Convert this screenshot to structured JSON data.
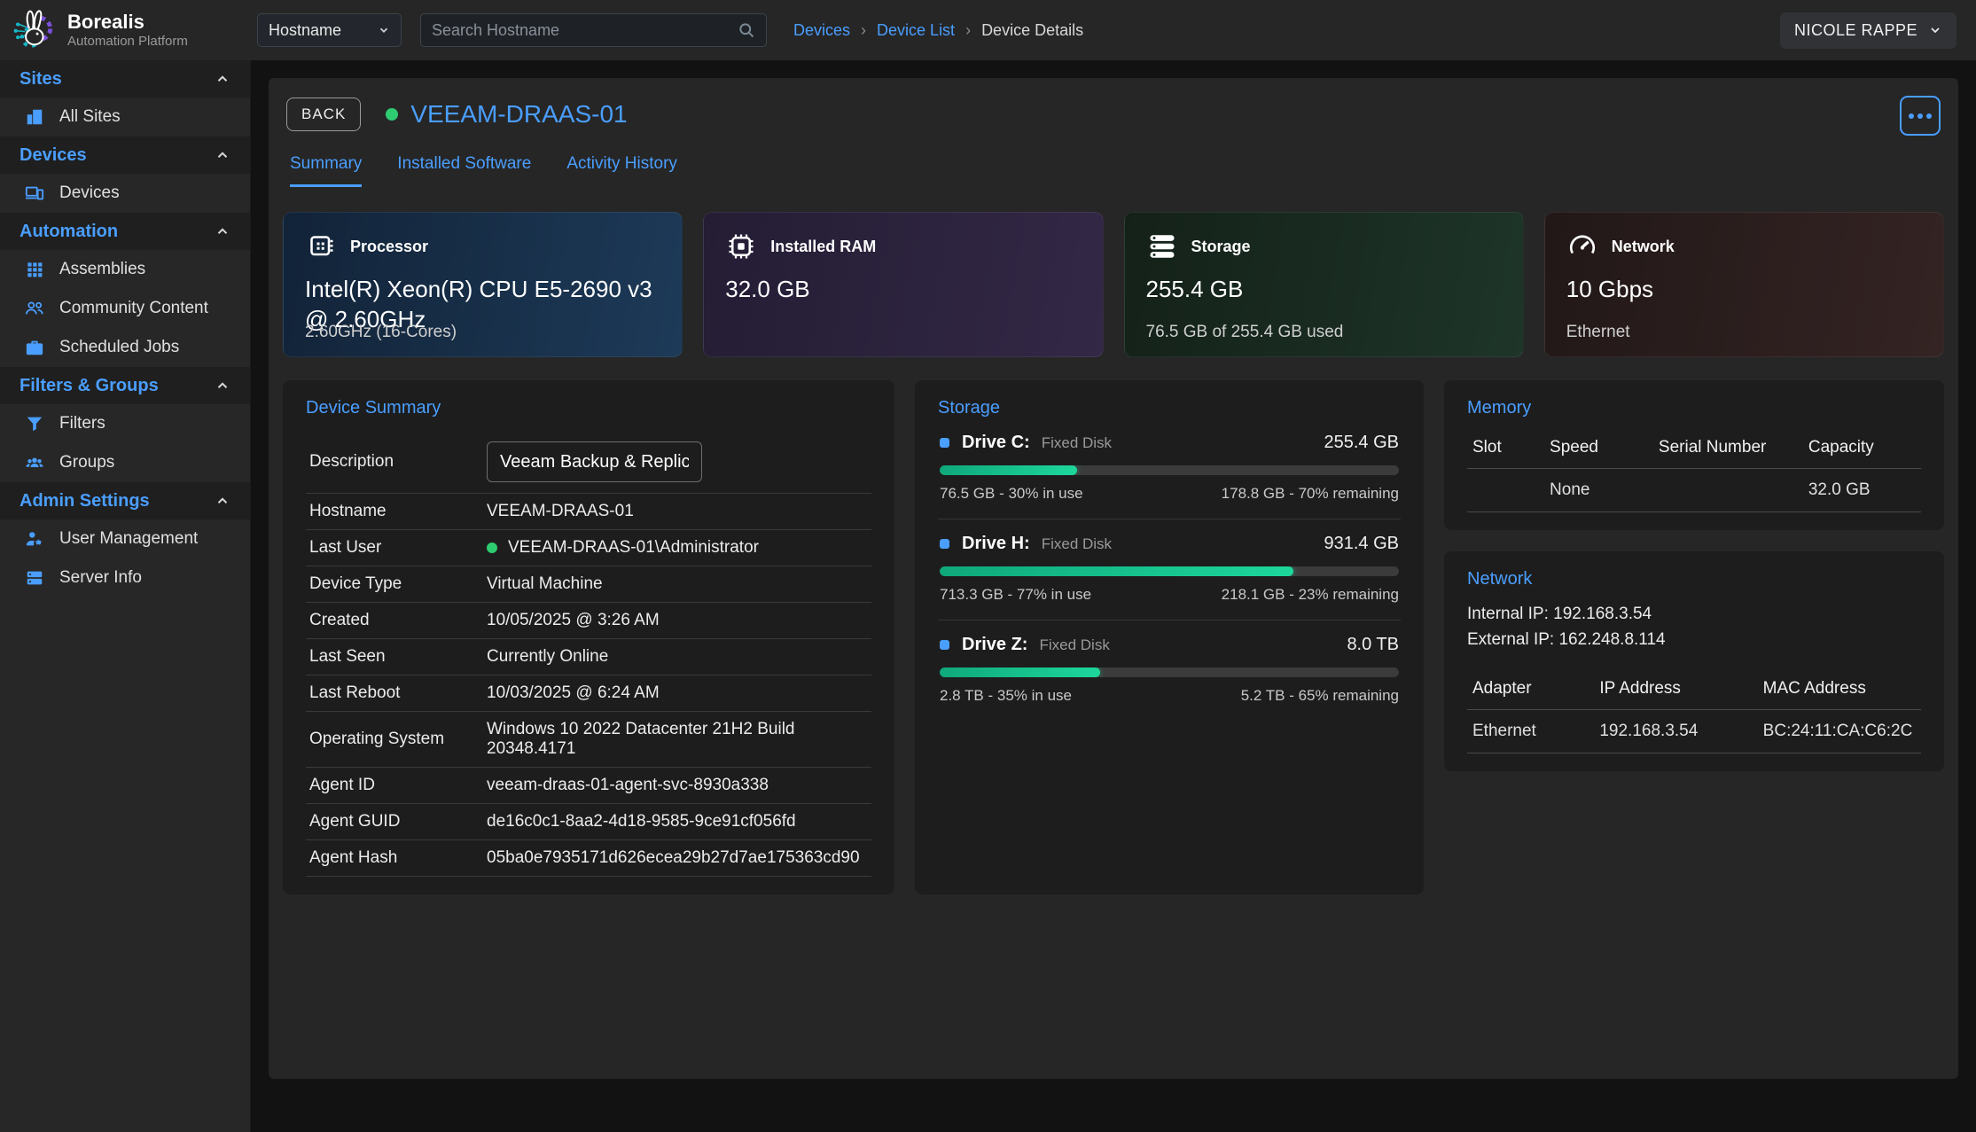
{
  "colors": {
    "accent": "#4a9eff",
    "online_green": "#2ecc71",
    "progress_green": "#1dd79b"
  },
  "brand": {
    "name": "Borealis",
    "subtitle": "Automation Platform"
  },
  "topbar": {
    "filter_dropdown": "Hostname",
    "search_placeholder": "Search Hostname",
    "breadcrumb_separator": "›",
    "breadcrumbs": [
      {
        "label": "Devices"
      },
      {
        "label": "Device List"
      },
      {
        "label": "Device Details"
      }
    ],
    "user": "NICOLE RAPPE"
  },
  "sidebar": {
    "sections": [
      {
        "title": "Sites",
        "items": [
          {
            "label": "All Sites",
            "icon": "building-icon"
          }
        ]
      },
      {
        "title": "Devices",
        "items": [
          {
            "label": "Devices",
            "icon": "devices-icon"
          }
        ]
      },
      {
        "title": "Automation",
        "items": [
          {
            "label": "Assemblies",
            "icon": "grid-icon"
          },
          {
            "label": "Community Content",
            "icon": "people-icon"
          },
          {
            "label": "Scheduled Jobs",
            "icon": "briefcase-icon"
          }
        ]
      },
      {
        "title": "Filters & Groups",
        "items": [
          {
            "label": "Filters",
            "icon": "funnel-icon"
          },
          {
            "label": "Groups",
            "icon": "groups-icon"
          }
        ]
      },
      {
        "title": "Admin Settings",
        "items": [
          {
            "label": "User Management",
            "icon": "user-gear-icon"
          },
          {
            "label": "Server Info",
            "icon": "server-icon"
          }
        ]
      }
    ]
  },
  "header": {
    "back_label": "BACK",
    "device_name": "VEEAM-DRAAS-01",
    "tabs": [
      {
        "label": "Summary",
        "active": true
      },
      {
        "label": "Installed Software",
        "active": false
      },
      {
        "label": "Activity History",
        "active": false
      }
    ]
  },
  "stat_cards": [
    {
      "icon": "cpu-icon",
      "label": "Processor",
      "value": "Intel(R) Xeon(R) CPU E5-2690 v3 @ 2.60GHz",
      "sub": "2.60GHz (16-Cores)"
    },
    {
      "icon": "ram-icon",
      "label": "Installed RAM",
      "value": "32.0 GB",
      "sub": ""
    },
    {
      "icon": "disks-icon",
      "label": "Storage",
      "value": "255.4 GB",
      "sub": "76.5 GB of 255.4 GB used"
    },
    {
      "icon": "gauge-icon",
      "label": "Network",
      "value": "10 Gbps",
      "sub": "Ethernet"
    }
  ],
  "device_summary": {
    "title": "Device Summary",
    "description_label": "Description",
    "description_value": "Veeam Backup & Replication",
    "rows": [
      {
        "label": "Hostname",
        "value": "VEEAM-DRAAS-01"
      },
      {
        "label": "Last User",
        "value": "VEEAM-DRAAS-01\\Administrator",
        "online": true
      },
      {
        "label": "Device Type",
        "value": "Virtual Machine"
      },
      {
        "label": "Created",
        "value": "10/05/2025 @ 3:26 AM"
      },
      {
        "label": "Last Seen",
        "value": "Currently Online"
      },
      {
        "label": "Last Reboot",
        "value": "10/03/2025 @ 6:24 AM"
      },
      {
        "label": "Operating System",
        "value": "Windows 10 2022 Datacenter 21H2 Build 20348.4171"
      },
      {
        "label": "Agent ID",
        "value": "veeam-draas-01-agent-svc-8930a338"
      },
      {
        "label": "Agent GUID",
        "value": "de16c0c1-8aa2-4d18-9585-9ce91cf056fd"
      },
      {
        "label": "Agent Hash",
        "value": "05ba0e7935171d626ecea29b27d7ae175363cd90"
      }
    ]
  },
  "storage_panel": {
    "title": "Storage",
    "drives": [
      {
        "name": "Drive C:",
        "type": "Fixed Disk",
        "size": "255.4 GB",
        "used_pct": 30,
        "used_text": "76.5 GB - 30% in use",
        "remaining_text": "178.8 GB - 70% remaining"
      },
      {
        "name": "Drive H:",
        "type": "Fixed Disk",
        "size": "931.4 GB",
        "used_pct": 77,
        "used_text": "713.3 GB - 77% in use",
        "remaining_text": "218.1 GB - 23% remaining"
      },
      {
        "name": "Drive Z:",
        "type": "Fixed Disk",
        "size": "8.0 TB",
        "used_pct": 35,
        "used_text": "2.8 TB - 35% in use",
        "remaining_text": "5.2 TB - 65% remaining"
      }
    ]
  },
  "memory_panel": {
    "title": "Memory",
    "headers": [
      "Slot",
      "Speed",
      "Serial Number",
      "Capacity"
    ],
    "rows": [
      [
        "",
        "None",
        "",
        "32.0 GB"
      ]
    ]
  },
  "network_panel": {
    "title": "Network",
    "internal_ip": "Internal IP: 192.168.3.54",
    "external_ip": "External IP: 162.248.8.114",
    "headers": [
      "Adapter",
      "IP Address",
      "MAC Address"
    ],
    "rows": [
      [
        "Ethernet",
        "192.168.3.54",
        "BC:24:11:CA:C6:2C"
      ]
    ]
  }
}
